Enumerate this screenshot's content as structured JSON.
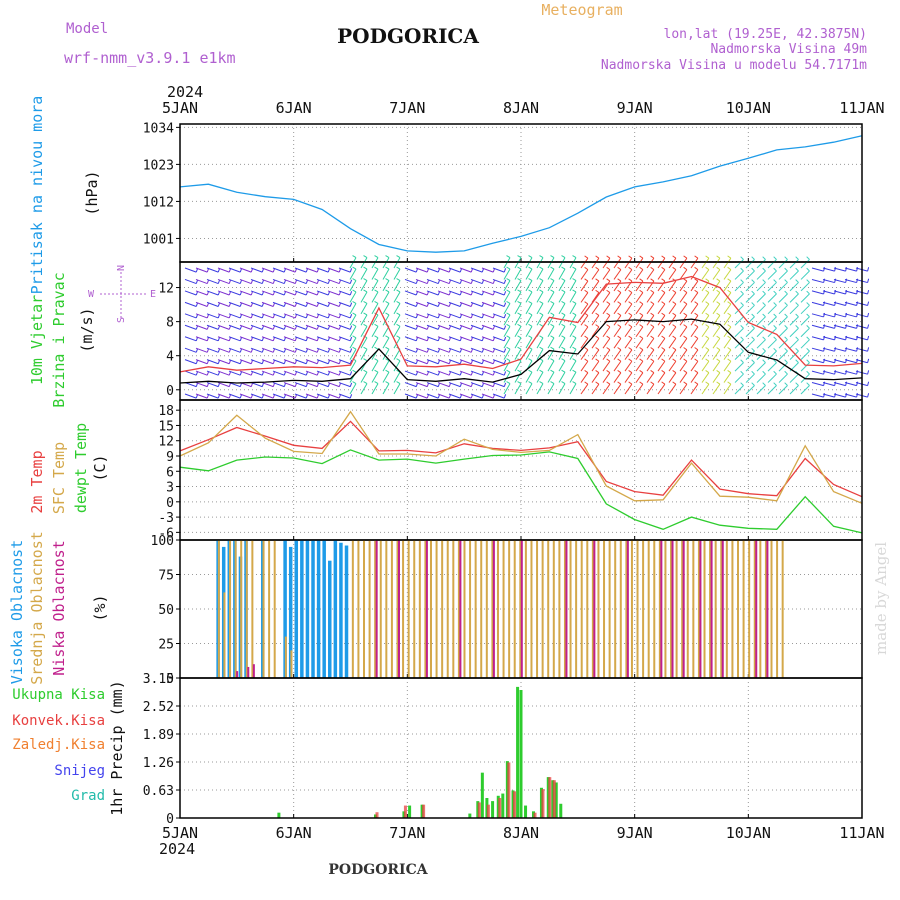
{
  "header": {
    "model_label": "Model",
    "model_name": "wrf-nmm_v3.9.1 e1km",
    "title": "PODGORICA",
    "meteogram": "Meteogram",
    "location_line": "lon,lat (19.25E, 42.3875N)",
    "elevation_line": "Nadmorska Visina 49m",
    "model_elevation_line": "Nadmorska Visina u modelu 54.7171m",
    "footer_title": "PODGORICA",
    "watermark": "made by Angel"
  },
  "colors": {
    "pressure": "#1e9be8",
    "wind_label": "#2ecc2e",
    "temp2m": "#e84040",
    "sfc": "#d4a84a",
    "dew": "#2ecc2e",
    "high_cloud": "#1e9be8",
    "mid_cloud": "#d4a84a",
    "low_cloud": "#c0208c",
    "wind_speed": "#000000",
    "gust": "#e84040",
    "rain_total": "#2ecc2e",
    "rain_conv": "#e84040",
    "freezing": "#f08030",
    "snow": "#4444ee",
    "hail": "#22bbaa",
    "compass": "#b060d0"
  },
  "axis": {
    "year": "2024",
    "x_ticks": [
      "5JAN",
      "6JAN",
      "7JAN",
      "8JAN",
      "9JAN",
      "10JAN",
      "11JAN"
    ]
  },
  "chart_data": [
    {
      "type": "line",
      "panel": "pressure",
      "ylabel": [
        "Pritisak na nivou mora",
        "(hPa)"
      ],
      "yticks": [
        1001,
        1012,
        1023,
        1034
      ],
      "ylim": [
        994,
        1035
      ],
      "x": [
        0,
        0.25,
        0.5,
        0.75,
        1.0,
        1.25,
        1.5,
        1.75,
        2.0,
        2.25,
        2.5,
        2.75,
        3.0,
        3.25,
        3.5,
        3.75,
        4.0,
        4.25,
        4.5,
        4.75,
        5.0,
        5.25,
        5.5,
        5.75,
        6.0
      ],
      "series": [
        {
          "values": [
            1016.3,
            1017.1,
            1014.7,
            1013.4,
            1012.6,
            1009.6,
            1003.9,
            999.2,
            997.3,
            996.9,
            997.3,
            999.6,
            1001.6,
            1004.2,
            1008.5,
            1013.3,
            1016.3,
            1017.8,
            1019.6,
            1022.5,
            1024.8,
            1027.3,
            1028.2,
            1029.6,
            1031.5
          ]
        }
      ]
    },
    {
      "type": "line",
      "panel": "wind",
      "ylabel": [
        "10m Vjetar",
        "Brzina i Pravac",
        "(m/s)"
      ],
      "compass": [
        "N",
        "S",
        "W",
        "E"
      ],
      "yticks": [
        0,
        4,
        8,
        12
      ],
      "ylim": [
        -1.2,
        15
      ],
      "x": [
        0,
        0.25,
        0.5,
        0.75,
        1.0,
        1.25,
        1.5,
        1.75,
        2.0,
        2.25,
        2.5,
        2.75,
        3.0,
        3.25,
        3.5,
        3.75,
        4.0,
        4.25,
        4.5,
        4.75,
        5.0,
        5.25,
        5.5,
        5.75,
        6.0
      ],
      "series": [
        {
          "values": [
            0.8,
            1.0,
            0.8,
            0.9,
            1.1,
            1.0,
            1.3,
            4.8,
            1.2,
            1.0,
            1.3,
            0.9,
            1.8,
            4.6,
            4.2,
            8.0,
            8.2,
            8.0,
            8.3,
            7.7,
            4.4,
            3.5,
            1.3,
            1.2,
            1.4
          ]
        },
        {
          "values": [
            2.1,
            2.7,
            2.3,
            2.5,
            2.7,
            2.6,
            2.9,
            9.6,
            2.8,
            2.7,
            3.0,
            2.5,
            3.6,
            8.5,
            7.9,
            12.4,
            12.6,
            12.5,
            13.3,
            12.0,
            7.9,
            6.5,
            2.9,
            2.8,
            3.1
          ]
        }
      ]
    },
    {
      "type": "line",
      "panel": "temperature",
      "ylabel": [
        "2m Temp",
        "SFC Temp",
        "dewpt Temp",
        "(C)"
      ],
      "yticks": [
        -6,
        -3,
        0,
        3,
        6,
        9,
        12,
        15,
        18
      ],
      "ylim": [
        -7.5,
        20
      ],
      "x": [
        0,
        0.25,
        0.5,
        0.75,
        1.0,
        1.25,
        1.5,
        1.75,
        2.0,
        2.25,
        2.5,
        2.75,
        3.0,
        3.25,
        3.5,
        3.75,
        4.0,
        4.25,
        4.5,
        4.75,
        5.0,
        5.25,
        5.5,
        5.75,
        6.0
      ],
      "series": [
        {
          "values": [
            10.0,
            12.2,
            14.6,
            12.9,
            11.1,
            10.5,
            15.8,
            10.0,
            10.1,
            9.6,
            11.4,
            10.5,
            10.1,
            10.6,
            11.8,
            4.0,
            2.0,
            1.3,
            8.2,
            2.5,
            1.6,
            1.2,
            8.5,
            3.4,
            1.0
          ]
        },
        {
          "values": [
            9.0,
            11.6,
            17.0,
            12.5,
            9.9,
            9.5,
            17.7,
            9.4,
            9.4,
            9.0,
            12.3,
            10.3,
            9.7,
            10.1,
            13.2,
            3.1,
            0.2,
            0.4,
            7.6,
            1.1,
            0.9,
            0.2,
            11.0,
            2.0,
            -0.3
          ]
        },
        {
          "values": [
            6.8,
            6.1,
            8.2,
            8.8,
            8.6,
            7.5,
            10.2,
            8.2,
            8.4,
            7.6,
            8.4,
            9.1,
            9.2,
            9.8,
            8.5,
            -0.4,
            -3.5,
            -5.4,
            -3.0,
            -4.6,
            -5.2,
            -5.4,
            1.0,
            -4.8,
            -6.1
          ]
        }
      ]
    },
    {
      "type": "bar",
      "panel": "clouds",
      "ylabel": [
        "Visoka Oblacnost",
        "Srednja Oblacnost",
        "Niska Oblacnost",
        "(%)"
      ],
      "yticks": [
        0,
        25,
        50,
        75,
        100
      ],
      "ylim": [
        0,
        100
      ],
      "x_range": [
        0.32,
        5.28
      ],
      "series": [
        {
          "values": [
            100,
            95,
            100,
            100,
            88,
            100,
            0,
            0,
            100,
            0,
            0,
            0,
            100,
            95,
            100,
            100,
            100,
            100,
            100,
            100,
            85,
            100,
            98,
            96,
            0,
            0,
            0,
            0,
            0,
            0,
            0,
            0,
            0,
            0,
            0,
            0,
            0,
            0,
            0,
            0,
            0,
            0,
            0,
            0,
            0,
            0,
            0,
            0,
            0,
            0,
            0,
            0,
            0,
            0,
            0,
            0,
            0,
            0,
            0,
            0,
            0,
            0,
            0,
            0,
            0,
            0,
            0,
            0,
            0,
            0,
            0,
            0,
            0,
            0,
            0,
            0,
            0,
            0,
            0,
            0,
            0,
            0,
            0,
            0,
            0,
            0,
            0,
            0,
            0,
            0,
            0,
            0,
            0,
            0,
            0,
            0,
            0,
            0,
            0,
            0,
            0,
            0
          ]
        },
        {
          "values": [
            100,
            62,
            100,
            100,
            100,
            100,
            100,
            0,
            100,
            100,
            100,
            0,
            30,
            20,
            0,
            0,
            0,
            0,
            0,
            0,
            0,
            0,
            0,
            0,
            100,
            100,
            100,
            100,
            100,
            100,
            100,
            100,
            100,
            100,
            100,
            100,
            100,
            100,
            100,
            100,
            100,
            100,
            100,
            100,
            100,
            100,
            100,
            100,
            100,
            100,
            100,
            100,
            100,
            100,
            100,
            100,
            100,
            100,
            100,
            100,
            100,
            100,
            100,
            100,
            100,
            100,
            100,
            100,
            100,
            100,
            100,
            100,
            100,
            100,
            100,
            100,
            100,
            100,
            100,
            100,
            100,
            100,
            100,
            100,
            100,
            100,
            100,
            100,
            100,
            100,
            100,
            100,
            100,
            100,
            100,
            100,
            100,
            100,
            100,
            100,
            100,
            100
          ]
        },
        {
          "values": [
            0,
            0,
            0,
            5,
            0,
            8,
            10,
            0,
            0,
            0,
            0,
            0,
            0,
            0,
            0,
            0,
            0,
            0,
            0,
            0,
            0,
            0,
            0,
            0,
            0,
            0,
            0,
            0,
            100,
            0,
            0,
            0,
            100,
            0,
            0,
            0,
            0,
            100,
            0,
            0,
            0,
            0,
            0,
            100,
            0,
            0,
            0,
            0,
            0,
            100,
            0,
            0,
            0,
            0,
            100,
            0,
            0,
            0,
            0,
            0,
            0,
            0,
            100,
            0,
            0,
            0,
            0,
            100,
            0,
            0,
            0,
            0,
            0,
            100,
            0,
            0,
            0,
            0,
            0,
            100,
            0,
            100,
            0,
            100,
            0,
            0,
            100,
            0,
            100,
            0,
            100,
            0,
            0,
            0,
            0,
            0,
            100,
            0,
            100,
            0,
            0,
            0
          ]
        }
      ]
    },
    {
      "type": "bar",
      "panel": "precipitation",
      "ylabel": [
        "1hr Precip (mm)"
      ],
      "legend": [
        "Ukupna Kisa",
        "Konvek.Kisa",
        "Zaledj.Kisa",
        "Snijeg",
        "Grad"
      ],
      "yticks": [
        0,
        0.63,
        1.26,
        1.89,
        2.52,
        3.15
      ],
      "ylim": [
        0,
        3.15
      ],
      "series": [
        {
          "x": [
            0.87,
            1.72,
            1.97,
            2.02,
            2.13,
            2.55,
            2.62,
            2.66,
            2.7,
            2.75,
            2.8,
            2.84,
            2.88,
            2.93,
            2.97,
            3.0,
            3.04,
            3.11,
            3.18,
            3.24,
            3.28,
            3.31,
            3.35
          ],
          "values": [
            0.12,
            0.08,
            0.15,
            0.28,
            0.3,
            0.1,
            0.38,
            1.02,
            0.45,
            0.38,
            0.5,
            0.55,
            1.28,
            0.62,
            2.95,
            2.88,
            0.28,
            0.15,
            0.68,
            0.92,
            0.85,
            0.8,
            0.32
          ]
        },
        {
          "x": [
            1.72,
            1.97,
            2.13,
            2.62,
            2.7,
            2.8,
            2.88,
            2.93,
            3.11,
            3.18,
            3.24,
            3.28
          ],
          "values": [
            0.13,
            0.28,
            0.3,
            0.35,
            0.3,
            0.45,
            1.25,
            0.6,
            0.12,
            0.65,
            0.92,
            0.85
          ]
        }
      ]
    }
  ]
}
